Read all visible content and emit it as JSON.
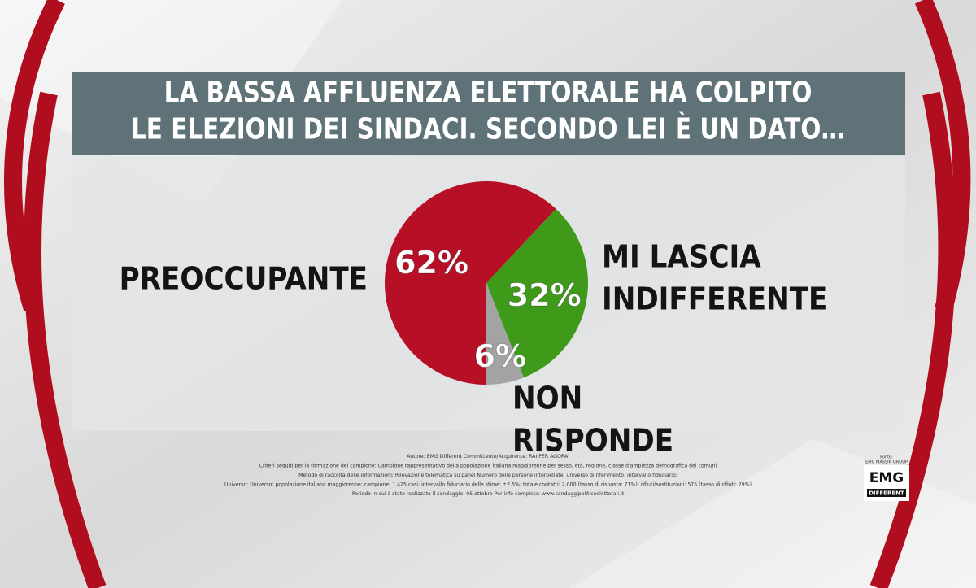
{
  "chart_data": {
    "type": "pie",
    "title_lines": [
      "LA BASSA AFFLUENZA ELETTORALE HA COLPITO",
      "LE ELEZIONI DEI SINDACI. SECONDO LEI È UN DATO…"
    ],
    "categories": [
      "PREOCCUPANTE",
      "MI LASCIA INDIFFERENTE",
      "NON RISPONDE"
    ],
    "values": [
      62,
      32,
      6
    ],
    "value_labels": [
      "62%",
      "32%",
      "6%"
    ],
    "colors": [
      "#b70f26",
      "#3f9a1a",
      "#a3a3a3"
    ],
    "footnote": [
      "Autore: EMG Different Committente/Acquirente: RAI PER AGORA'",
      "Criteri seguiti per la formazione del campione: Campione rappresentativo della popolazione italiana maggiorenne per sesso, età, regione, classe d'ampiezza demografica dei comuni",
      "Metodo di raccolta delle informazioni: Rilevazione telematica su panel Numero delle persone interpellate, universo di riferimento, intervallo fiduciario:",
      "Universo: Universo: popolazione italiana maggiorenne; campione: 1.425 casi; intervallo fiduciario delle stime: ±2,5%; totale contatti: 2.000 (tasso di risposta: 71%); rifiuti/sostituzioni: 575 (tasso di rifiuti: 29%)",
      "Periodo in cui è stato realizzato il sondaggio: 05 ottobre  Per info completa: www.sondaggipoliticoelettorali.it"
    ],
    "logo": {
      "source": "Fonte:",
      "group": "EMG MASSIN GROUP",
      "name": "EMG",
      "tag": "DIFFERENT"
    }
  }
}
